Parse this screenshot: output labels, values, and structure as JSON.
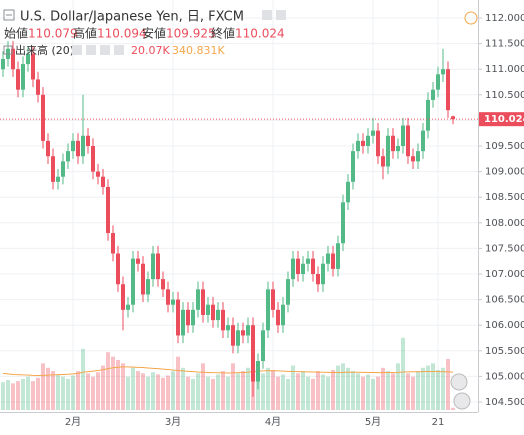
{
  "chart_data": {
    "type": "candlestick",
    "title": "U.S. Dollar/Japanese Yen, 日, FXCM",
    "ohlc_labels": [
      "始値",
      "高値",
      "安値",
      "終値"
    ],
    "volume_title": "出来高 (20)",
    "volume_value_label": "20.07K",
    "volume_ma_label": "340.831K",
    "categories": [
      null,
      null,
      null,
      null,
      null,
      null,
      null,
      null,
      null,
      null,
      null,
      null,
      null,
      null,
      "2月",
      null,
      null,
      null,
      null,
      null,
      null,
      null,
      null,
      null,
      null,
      null,
      null,
      null,
      null,
      null,
      null,
      null,
      null,
      null,
      "3月",
      null,
      null,
      null,
      null,
      null,
      null,
      null,
      null,
      null,
      null,
      null,
      null,
      null,
      null,
      null,
      null,
      null,
      null,
      null,
      "4月",
      null,
      null,
      null,
      null,
      null,
      null,
      null,
      null,
      null,
      null,
      null,
      null,
      null,
      null,
      null,
      null,
      null,
      null,
      null,
      "5月",
      null,
      null,
      null,
      null,
      null,
      null,
      null,
      null,
      null,
      null,
      null,
      null,
      "21",
      null,
      null,
      null
    ],
    "opens": [
      111.0,
      111.2,
      111.4,
      111.0,
      110.6,
      111.1,
      111.3,
      110.8,
      110.5,
      109.6,
      109.3,
      108.8,
      108.9,
      109.2,
      109.4,
      109.6,
      109.3,
      109.7,
      109.5,
      109.0,
      108.9,
      108.7,
      107.8,
      107.4,
      106.8,
      106.3,
      106.4,
      107.3,
      107.2,
      106.6,
      106.9,
      107.4,
      106.9,
      106.7,
      106.4,
      106.5,
      105.8,
      106.3,
      106.0,
      106.3,
      106.7,
      106.2,
      106.4,
      106.1,
      106.3,
      105.9,
      106.0,
      105.6,
      105.9,
      105.8,
      106.0,
      104.9,
      105.3,
      105.9,
      106.7,
      106.3,
      106.0,
      106.4,
      106.9,
      107.3,
      107.0,
      107.2,
      107.3,
      107.0,
      106.8,
      107.2,
      107.4,
      107.1,
      107.6,
      108.4,
      108.8,
      109.4,
      109.6,
      109.5,
      109.7,
      109.8,
      109.3,
      109.1,
      109.7,
      109.4,
      109.5,
      109.9,
      109.3,
      109.2,
      109.4,
      109.8,
      110.4,
      110.6,
      110.9,
      111.0,
      110.079
    ],
    "highs": [
      111.35,
      111.55,
      111.55,
      111.15,
      111.25,
      111.45,
      111.45,
      110.95,
      110.65,
      109.75,
      109.45,
      109.05,
      109.35,
      109.55,
      109.75,
      109.75,
      110.5,
      109.85,
      109.65,
      109.15,
      109.05,
      108.85,
      107.95,
      107.55,
      106.95,
      106.55,
      107.45,
      107.45,
      107.35,
      107.05,
      107.55,
      107.55,
      107.05,
      106.85,
      106.65,
      106.65,
      106.45,
      106.45,
      106.45,
      106.85,
      106.85,
      106.55,
      106.55,
      106.45,
      106.45,
      106.15,
      106.15,
      106.05,
      106.05,
      106.15,
      106.15,
      105.45,
      106.05,
      106.85,
      106.85,
      106.45,
      106.55,
      107.05,
      107.45,
      107.45,
      107.35,
      107.45,
      107.45,
      107.15,
      107.35,
      107.55,
      107.55,
      107.75,
      108.55,
      108.95,
      109.55,
      109.75,
      109.75,
      109.85,
      110.05,
      109.95,
      109.45,
      109.85,
      109.85,
      109.65,
      110.05,
      110.05,
      109.45,
      109.55,
      109.95,
      110.55,
      110.75,
      111.05,
      111.4,
      111.15,
      110.094
    ],
    "lows": [
      110.85,
      111.05,
      110.85,
      110.45,
      110.45,
      110.95,
      110.65,
      110.35,
      109.45,
      109.15,
      108.65,
      108.65,
      108.75,
      109.05,
      109.25,
      109.15,
      109.15,
      109.35,
      108.85,
      108.75,
      108.55,
      107.65,
      107.25,
      106.65,
      105.9,
      106.15,
      106.25,
      107.05,
      106.45,
      106.45,
      106.75,
      106.75,
      106.55,
      106.25,
      106.25,
      105.65,
      105.65,
      105.85,
      105.85,
      106.15,
      106.05,
      106.05,
      105.95,
      105.95,
      105.75,
      105.75,
      105.45,
      105.45,
      105.65,
      105.65,
      104.6,
      104.75,
      105.15,
      105.75,
      106.15,
      105.85,
      105.85,
      106.25,
      106.75,
      106.85,
      106.85,
      107.05,
      106.85,
      106.65,
      106.65,
      107.05,
      106.95,
      106.95,
      107.45,
      108.25,
      108.65,
      109.25,
      109.35,
      109.35,
      109.55,
      109.15,
      108.85,
      108.95,
      109.25,
      109.25,
      109.35,
      109.15,
      109.05,
      109.05,
      109.25,
      109.65,
      110.25,
      110.45,
      110.75,
      110.05,
      109.925
    ],
    "closes": [
      111.2,
      111.4,
      111.0,
      110.6,
      111.1,
      111.3,
      110.8,
      110.5,
      109.6,
      109.3,
      108.8,
      108.9,
      109.2,
      109.4,
      109.6,
      109.3,
      109.7,
      109.5,
      109.0,
      108.9,
      108.7,
      107.8,
      107.4,
      106.8,
      106.3,
      106.4,
      107.3,
      107.2,
      106.6,
      106.9,
      107.4,
      106.9,
      106.7,
      106.4,
      106.5,
      105.8,
      106.3,
      106.0,
      106.3,
      106.7,
      106.2,
      106.4,
      106.1,
      106.3,
      105.9,
      106.0,
      105.6,
      105.9,
      105.8,
      106.0,
      104.9,
      105.3,
      105.9,
      106.7,
      106.3,
      106.0,
      106.4,
      106.9,
      107.3,
      107.0,
      107.2,
      107.3,
      107.0,
      106.8,
      107.2,
      107.4,
      107.1,
      107.6,
      108.4,
      108.8,
      109.4,
      109.6,
      109.5,
      109.7,
      109.8,
      109.3,
      109.1,
      109.7,
      109.4,
      109.5,
      109.9,
      109.3,
      109.2,
      109.4,
      109.8,
      110.4,
      110.6,
      110.9,
      111.0,
      110.2,
      110.024
    ],
    "volumes": [
      250,
      270,
      240,
      260,
      280,
      300,
      260,
      290,
      420,
      380,
      350,
      320,
      300,
      280,
      310,
      350,
      550,
      330,
      300,
      340,
      400,
      520,
      480,
      450,
      420,
      300,
      380,
      350,
      330,
      300,
      340,
      320,
      290,
      310,
      350,
      480,
      380,
      300,
      280,
      330,
      420,
      300,
      280,
      320,
      350,
      300,
      420,
      330,
      350,
      380,
      650,
      400,
      330,
      380,
      360,
      300,
      320,
      280,
      400,
      330,
      350,
      300,
      280,
      350,
      320,
      300,
      360,
      400,
      420,
      380,
      350,
      330,
      300,
      320,
      280,
      300,
      380,
      350,
      330,
      420,
      650,
      330,
      300,
      350,
      380,
      400,
      420,
      360,
      380,
      460,
      20.07
    ],
    "volume_ma": [
      330,
      325,
      320,
      318,
      316,
      315,
      312,
      310,
      312,
      314,
      316,
      318,
      320,
      322,
      325,
      330,
      340,
      345,
      350,
      355,
      362,
      372,
      380,
      385,
      388,
      388,
      386,
      384,
      382,
      378,
      375,
      372,
      368,
      364,
      360,
      356,
      352,
      348,
      345,
      342,
      340,
      338,
      336,
      335,
      334,
      333,
      334,
      336,
      338,
      340,
      345,
      350,
      352,
      353,
      354,
      352,
      350,
      348,
      346,
      345,
      344,
      343,
      342,
      341,
      340,
      339,
      338,
      338,
      339,
      340,
      340,
      340,
      339,
      338,
      337,
      336,
      336,
      337,
      338,
      339,
      342,
      343,
      344,
      344,
      345,
      346,
      346,
      345,
      344,
      343,
      340.831
    ],
    "vlim": [
      0,
      900
    ],
    "up_color": "#53b987",
    "down_color": "#eb4d5c",
    "ma_color": "#f5a64b",
    "ylim": [
      104.3,
      112.2
    ],
    "yticks": [
      {
        "value": 104.5,
        "label": "104.500"
      },
      {
        "value": 105,
        "label": "105.000"
      },
      {
        "value": 105.5,
        "label": "105.500"
      },
      {
        "value": 106,
        "label": "106.000"
      },
      {
        "value": 106.5,
        "label": "106.500"
      },
      {
        "value": 107,
        "label": "107.000"
      },
      {
        "value": 107.5,
        "label": "107.500"
      },
      {
        "value": 108,
        "label": "108.000"
      },
      {
        "value": 108.5,
        "label": "108.500"
      },
      {
        "value": 109,
        "label": "109.000"
      },
      {
        "value": 109.5,
        "label": "109.500"
      },
      {
        "value": 110,
        "label": "110.000"
      },
      {
        "value": 110.5,
        "label": "110.500"
      },
      {
        "value": 111,
        "label": "111.000"
      },
      {
        "value": 111.5,
        "label": "111.500"
      },
      {
        "value": 112,
        "label": "112.000"
      }
    ],
    "grid": true
  }
}
